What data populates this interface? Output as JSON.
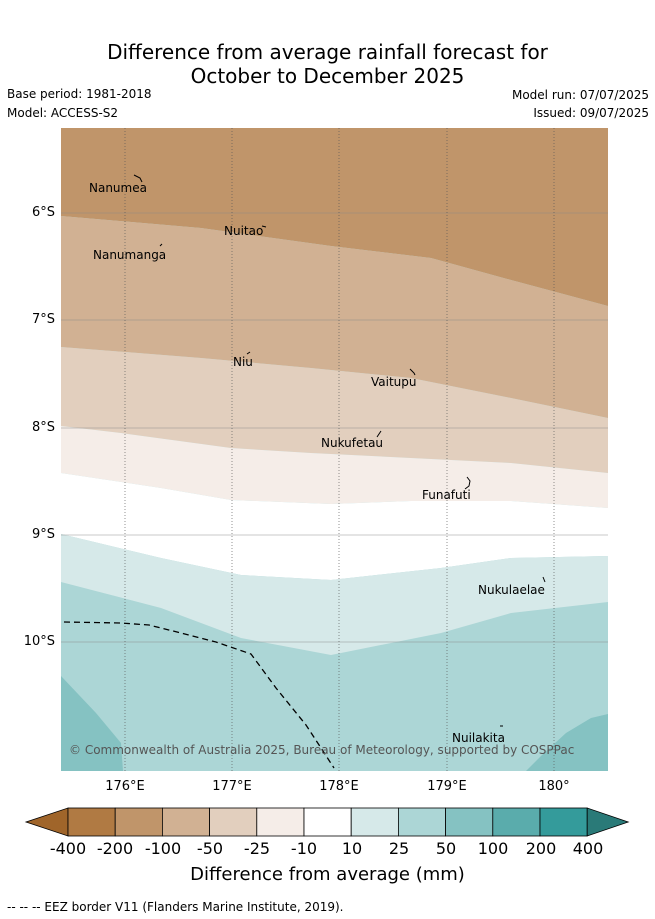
{
  "title_line1": "Difference from average rainfall forecast for",
  "title_line2": "October to December 2025",
  "base_period": "Base period: 1981-2018",
  "model": "Model: ACCESS-S2",
  "model_run": "Model run: 07/07/2025",
  "issued": "Issued: 09/07/2025",
  "lat_labels": [
    "6°S",
    "7°S",
    "8°S",
    "9°S",
    "10°S"
  ],
  "lon_labels": [
    "176°E",
    "177°E",
    "178°E",
    "179°E",
    "180°"
  ],
  "places": {
    "nanumea": "Nanumea",
    "nuitao": "Nuitao",
    "nanumanga": "Nanumanga",
    "niu": "Niu",
    "vaitupu": "Vaitupu",
    "nukufetau": "Nukufetau",
    "funafuti": "Funafuti",
    "nukulaelae": "Nukulaelae",
    "nuilakita": "Nuilakita"
  },
  "copyright": "© Commonwealth of Australia 2025, Bureau of Meteorology, supported by COSPPac",
  "colorbar": {
    "title": "Difference from average (mm)",
    "labels": [
      "-400",
      "-200",
      "-100",
      "-50",
      "-25",
      "-10",
      "10",
      "25",
      "50",
      "100",
      "200",
      "400"
    ],
    "colors": [
      "#a0652a",
      "#b07a43",
      "#c0956a",
      "#d1b193",
      "#e2cfbe",
      "#f5ede8",
      "#ffffff",
      "#d6e9e9",
      "#acd6d6",
      "#85c2c2",
      "#5aacac",
      "#349b9b",
      "#2a7a78"
    ]
  },
  "legend_note": "--  --  -- EEZ border V11 (Flanders Marine Institute, 2019)."
}
